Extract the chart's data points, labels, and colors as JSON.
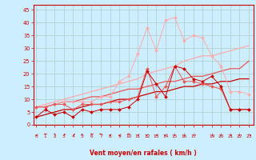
{
  "x": [
    0,
    1,
    2,
    3,
    4,
    5,
    6,
    7,
    8,
    9,
    10,
    11,
    12,
    13,
    14,
    15,
    16,
    17,
    18,
    19,
    20,
    21,
    22,
    23
  ],
  "line_dark": [
    3,
    6,
    4,
    5,
    3,
    6,
    5,
    6,
    6,
    6,
    7,
    10,
    21,
    16,
    11,
    23,
    22,
    18,
    17,
    19,
    15,
    6,
    6,
    6
  ],
  "line_mid": [
    7,
    7,
    8,
    8,
    6,
    8,
    8,
    8,
    9,
    9,
    10,
    11,
    22,
    11,
    15,
    23,
    17,
    17,
    16,
    15,
    14,
    6,
    6,
    6
  ],
  "line_light": [
    7,
    7,
    8,
    9,
    9,
    9,
    9,
    11,
    11,
    17,
    19,
    28,
    38,
    29,
    41,
    42,
    33,
    35,
    34,
    27,
    23,
    13,
    13,
    12
  ],
  "trend_dark": [
    3,
    4,
    5,
    6,
    6,
    7,
    8,
    8,
    9,
    10,
    10,
    11,
    12,
    13,
    13,
    14,
    15,
    15,
    16,
    16,
    17,
    17,
    18,
    18
  ],
  "trend_mid": [
    7,
    7,
    8,
    9,
    9,
    10,
    11,
    11,
    12,
    13,
    14,
    14,
    15,
    16,
    17,
    17,
    18,
    19,
    19,
    20,
    21,
    22,
    22,
    25
  ],
  "trend_light": [
    7,
    8,
    9,
    10,
    11,
    12,
    13,
    14,
    15,
    16,
    17,
    18,
    20,
    21,
    22,
    23,
    25,
    26,
    27,
    27,
    28,
    29,
    30,
    31
  ],
  "background": "#cceeff",
  "grid_color": "#aacccc",
  "line_color_dark": "#cc0000",
  "line_color_mid": "#ee5555",
  "line_color_light": "#ffaaaa",
  "xlabel": "Vent moyen/en rafales ( km/h )",
  "ylabel_ticks": [
    0,
    5,
    10,
    15,
    20,
    25,
    30,
    35,
    40,
    45
  ],
  "xlim": [
    -0.3,
    23.5
  ],
  "ylim": [
    0,
    47
  ],
  "xtick_labels": [
    "0",
    "1",
    "2",
    "3",
    "4",
    "5",
    "6",
    "7",
    "8",
    "9",
    "10",
    "11",
    "12",
    "13",
    "14",
    "15",
    "16",
    "17",
    "",
    "19",
    "20",
    "21",
    "22",
    "23"
  ],
  "arrow_symbols": [
    "↙",
    "←",
    "↑",
    "↗",
    "↗",
    "↖",
    "←",
    "←",
    "↙",
    "↙",
    "←",
    "↙",
    "↙",
    "↙",
    "↙",
    "↓",
    "↓",
    "↓",
    "",
    "↓",
    "↓",
    "↓",
    "↓",
    "↘"
  ]
}
